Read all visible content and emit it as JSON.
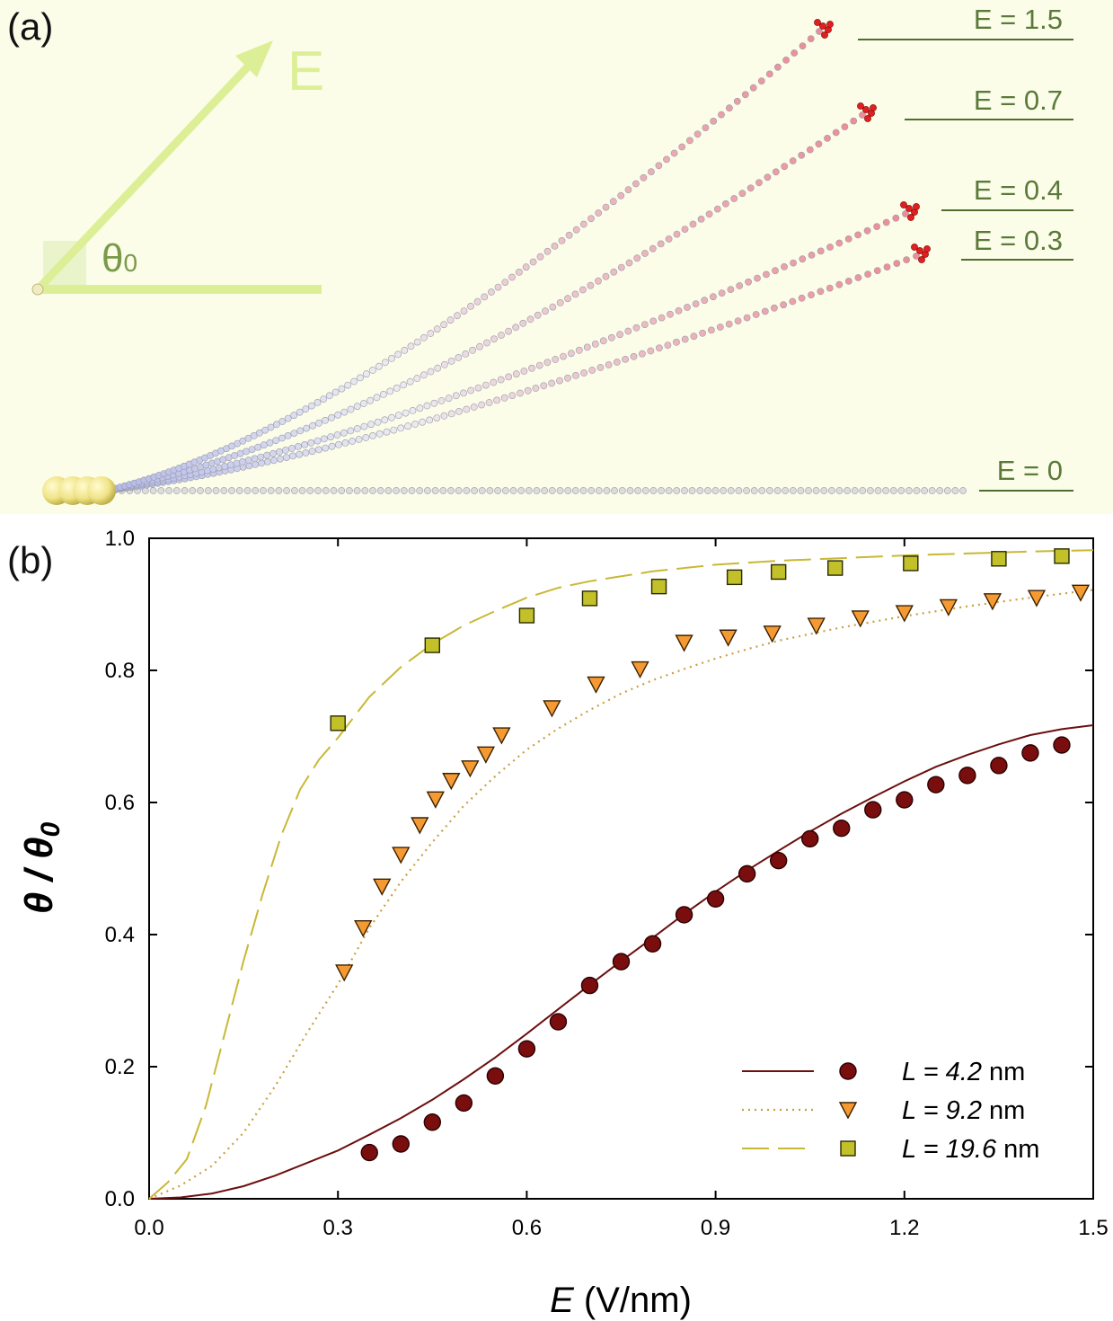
{
  "panel_a": {
    "label": "(a)",
    "arrow_label": "E",
    "angle_label": "θ",
    "angle_subscript": "0",
    "field_labels": [
      "E = 1.5",
      "E = 0.7",
      "E = 0.4",
      "E = 0.3",
      "E = 0"
    ],
    "colors": {
      "background": "#fbfde9",
      "field_arrow": "#d9ec8e",
      "label_text": "#5b7a3a",
      "label_line": "#4f6e2d",
      "tip": "#e02020",
      "bead_base": "#c8cbe8",
      "bead_mid": "#f2e8ee",
      "bead_tip": "#f0a0a8"
    }
  },
  "panel_b": {
    "label": "(b)"
  },
  "chart_data": {
    "type": "scatter",
    "xlabel": "E (V/nm)",
    "xlabel_italic": "E",
    "xlabel_unit": " (V/nm)",
    "ylabel": "θ / θ0",
    "xlim": [
      0,
      1.5
    ],
    "ylim": [
      0,
      1.0
    ],
    "xticks": [
      0.0,
      0.3,
      0.6,
      0.9,
      1.2,
      1.5
    ],
    "xtick_labels": [
      "0.0",
      "0.3",
      "0.6",
      "0.9",
      "1.2",
      "1.5"
    ],
    "yticks": [
      0.0,
      0.2,
      0.4,
      0.6,
      0.8,
      1.0
    ],
    "ytick_labels": [
      "0.0",
      "0.2",
      "0.4",
      "0.6",
      "0.8",
      "1.0"
    ],
    "legend_position": "bottom-right",
    "series": [
      {
        "name": "L = 4.2 nm",
        "legend_italic": "L = 4.2",
        "legend_unit": " nm",
        "marker": "circle",
        "line_style": "solid",
        "color": "#7a0e0e",
        "line_color": "#6b0f0f",
        "x": [
          0.35,
          0.4,
          0.45,
          0.5,
          0.55,
          0.6,
          0.65,
          0.7,
          0.75,
          0.8,
          0.85,
          0.9,
          0.95,
          1.0,
          1.05,
          1.1,
          1.15,
          1.2,
          1.25,
          1.3,
          1.35,
          1.4,
          1.45
        ],
        "y": [
          0.07,
          0.083,
          0.116,
          0.145,
          0.186,
          0.227,
          0.268,
          0.323,
          0.359,
          0.386,
          0.43,
          0.454,
          0.492,
          0.512,
          0.545,
          0.561,
          0.589,
          0.604,
          0.627,
          0.641,
          0.656,
          0.675,
          0.687
        ],
        "fit_x": [
          0.0,
          0.05,
          0.1,
          0.15,
          0.2,
          0.25,
          0.3,
          0.35,
          0.4,
          0.45,
          0.5,
          0.55,
          0.6,
          0.65,
          0.7,
          0.75,
          0.8,
          0.85,
          0.9,
          0.95,
          1.0,
          1.05,
          1.1,
          1.15,
          1.2,
          1.25,
          1.3,
          1.35,
          1.4,
          1.45,
          1.5
        ],
        "fit_y": [
          0.0,
          0.002,
          0.008,
          0.019,
          0.035,
          0.054,
          0.073,
          0.097,
          0.122,
          0.15,
          0.181,
          0.214,
          0.25,
          0.287,
          0.324,
          0.36,
          0.395,
          0.431,
          0.465,
          0.497,
          0.527,
          0.556,
          0.583,
          0.608,
          0.632,
          0.654,
          0.672,
          0.688,
          0.702,
          0.711,
          0.717
        ]
      },
      {
        "name": "L = 9.2 nm",
        "legend_italic": "L = 9.2",
        "legend_unit": " nm",
        "marker": "triangle-down",
        "line_style": "dotted",
        "color": "#f59a33",
        "line_color": "#c8a040",
        "x": [
          0.31,
          0.34,
          0.37,
          0.4,
          0.43,
          0.455,
          0.48,
          0.51,
          0.535,
          0.56,
          0.64,
          0.71,
          0.78,
          0.85,
          0.92,
          0.99,
          1.06,
          1.13,
          1.2,
          1.27,
          1.34,
          1.41,
          1.48
        ],
        "y": [
          0.343,
          0.41,
          0.473,
          0.521,
          0.566,
          0.605,
          0.633,
          0.652,
          0.673,
          0.702,
          0.743,
          0.779,
          0.802,
          0.842,
          0.85,
          0.856,
          0.868,
          0.879,
          0.887,
          0.896,
          0.905,
          0.91,
          0.918
        ],
        "fit_x": [
          0.0,
          0.05,
          0.1,
          0.15,
          0.2,
          0.25,
          0.3,
          0.35,
          0.4,
          0.45,
          0.5,
          0.55,
          0.6,
          0.65,
          0.7,
          0.75,
          0.8,
          0.85,
          0.9,
          0.95,
          1.0,
          1.1,
          1.2,
          1.3,
          1.4,
          1.5
        ],
        "fit_y": [
          0.0,
          0.02,
          0.05,
          0.1,
          0.17,
          0.25,
          0.325,
          0.41,
          0.48,
          0.54,
          0.595,
          0.64,
          0.68,
          0.712,
          0.74,
          0.765,
          0.785,
          0.802,
          0.818,
          0.832,
          0.845,
          0.865,
          0.882,
          0.897,
          0.91,
          0.922
        ]
      },
      {
        "name": "L = 19.6 nm",
        "legend_italic": "L = 19.6",
        "legend_unit": " nm",
        "marker": "square",
        "line_style": "dashed",
        "color": "#c2c12a",
        "line_color": "#c9b835",
        "x": [
          0.3,
          0.45,
          0.6,
          0.7,
          0.81,
          0.93,
          1.0,
          1.09,
          1.21,
          1.35,
          1.45
        ],
        "y": [
          0.72,
          0.838,
          0.883,
          0.909,
          0.927,
          0.941,
          0.949,
          0.955,
          0.962,
          0.969,
          0.973
        ],
        "fit_x": [
          0.0,
          0.03,
          0.06,
          0.09,
          0.12,
          0.15,
          0.18,
          0.21,
          0.24,
          0.27,
          0.3,
          0.35,
          0.4,
          0.45,
          0.5,
          0.55,
          0.6,
          0.65,
          0.7,
          0.8,
          0.9,
          1.0,
          1.1,
          1.2,
          1.3,
          1.4,
          1.5
        ],
        "fit_y": [
          0.0,
          0.025,
          0.06,
          0.14,
          0.25,
          0.36,
          0.46,
          0.55,
          0.62,
          0.665,
          0.698,
          0.76,
          0.805,
          0.84,
          0.868,
          0.89,
          0.91,
          0.925,
          0.935,
          0.95,
          0.96,
          0.966,
          0.97,
          0.974,
          0.977,
          0.98,
          0.982
        ]
      }
    ]
  }
}
